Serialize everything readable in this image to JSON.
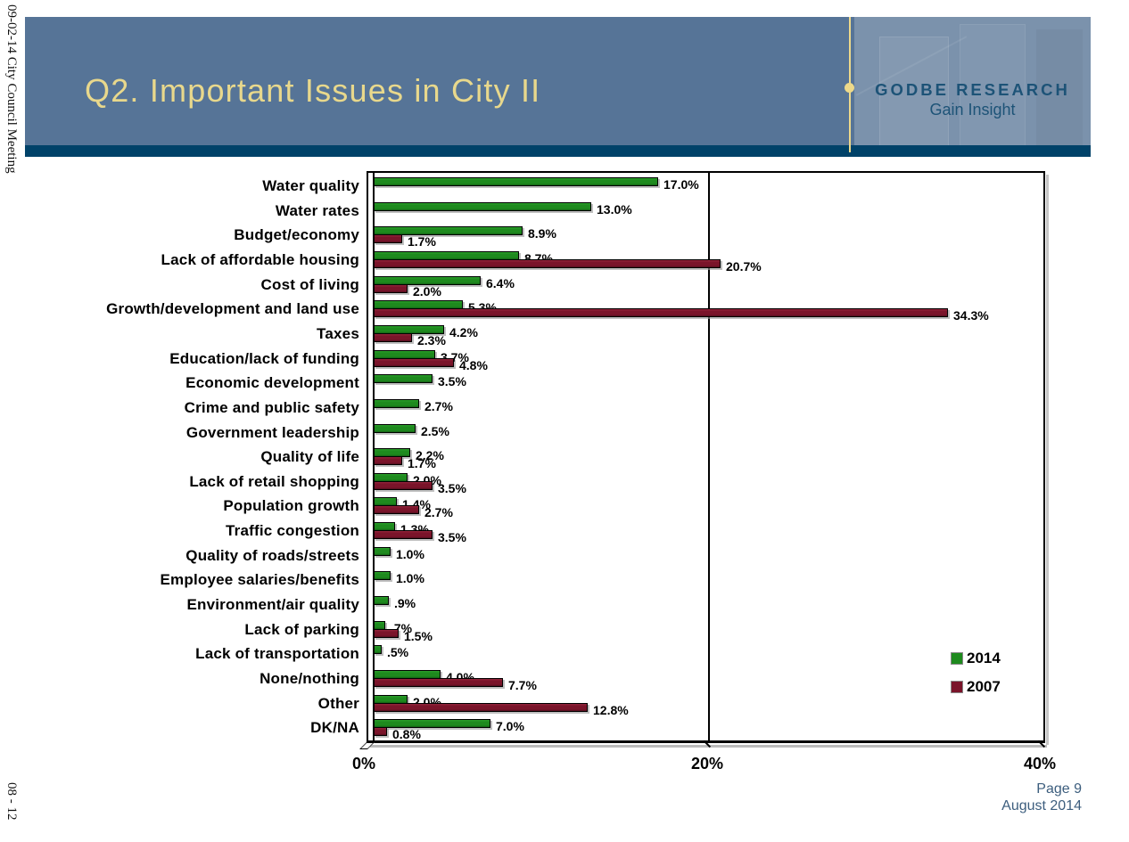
{
  "margin_notes": {
    "top": "09-02-14 City Council Meeting",
    "bottom": "08 - 12"
  },
  "header": {
    "title": "Q2. Important Issues in City II",
    "logo_name": "GODBE RESEARCH",
    "logo_tagline": "Gain Insight",
    "band_color": "#567497",
    "underline_color": "#004269",
    "title_color": "#E8D88C"
  },
  "footer": {
    "page": "Page 9",
    "date": "August 2014"
  },
  "chart_data": {
    "type": "bar",
    "orientation": "horizontal",
    "xlim": [
      0,
      40
    ],
    "x_ticks": [
      "0%",
      "20%",
      "40%"
    ],
    "gridline_at": 20,
    "legend_position": "inside-right",
    "categories": [
      "Water quality",
      "Water rates",
      "Budget/economy",
      "Lack of affordable housing",
      "Cost of living",
      "Growth/development and land use",
      "Taxes",
      "Education/lack of funding",
      "Economic development",
      "Crime and public safety",
      "Government leadership",
      "Quality of life",
      "Lack of retail shopping",
      "Population growth",
      "Traffic congestion",
      "Quality of roads/streets",
      "Employee salaries/benefits",
      "Environment/air quality",
      "Lack of parking",
      "Lack of transportation",
      "None/nothing",
      "Other",
      "DK/NA"
    ],
    "series": [
      {
        "name": "2014",
        "color": "#1e8a1e",
        "values": [
          17.0,
          13.0,
          8.9,
          8.7,
          6.4,
          5.3,
          4.2,
          3.7,
          3.5,
          2.7,
          2.5,
          2.2,
          2.0,
          1.4,
          1.3,
          1.0,
          1.0,
          0.9,
          0.7,
          0.5,
          4.0,
          2.0,
          7.0
        ],
        "labels": [
          "17.0%",
          "13.0%",
          "8.9%",
          "8.7%",
          "6.4%",
          "5.3%",
          "4.2%",
          "3.7%",
          "3.5%",
          "2.7%",
          "2.5%",
          "2.2%",
          "2.0%",
          "1.4%",
          "1.3%",
          "1.0%",
          "1.0%",
          ".9%",
          ".7%",
          ".5%",
          "4.0%",
          "2.0%",
          "7.0%"
        ]
      },
      {
        "name": "2007",
        "color": "#7a142a",
        "values": [
          null,
          null,
          1.7,
          20.7,
          2.0,
          34.3,
          2.3,
          4.8,
          null,
          null,
          null,
          1.7,
          3.5,
          2.7,
          3.5,
          null,
          null,
          null,
          1.5,
          null,
          7.7,
          12.8,
          0.8
        ],
        "labels": [
          null,
          null,
          "1.7%",
          "20.7%",
          "2.0%",
          "34.3%",
          "2.3%",
          "4.8%",
          null,
          null,
          null,
          "1.7%",
          "3.5%",
          "2.7%",
          "3.5%",
          null,
          null,
          null,
          "1.5%",
          null,
          "7.7%",
          "12.8%",
          "0.8%"
        ]
      }
    ]
  }
}
